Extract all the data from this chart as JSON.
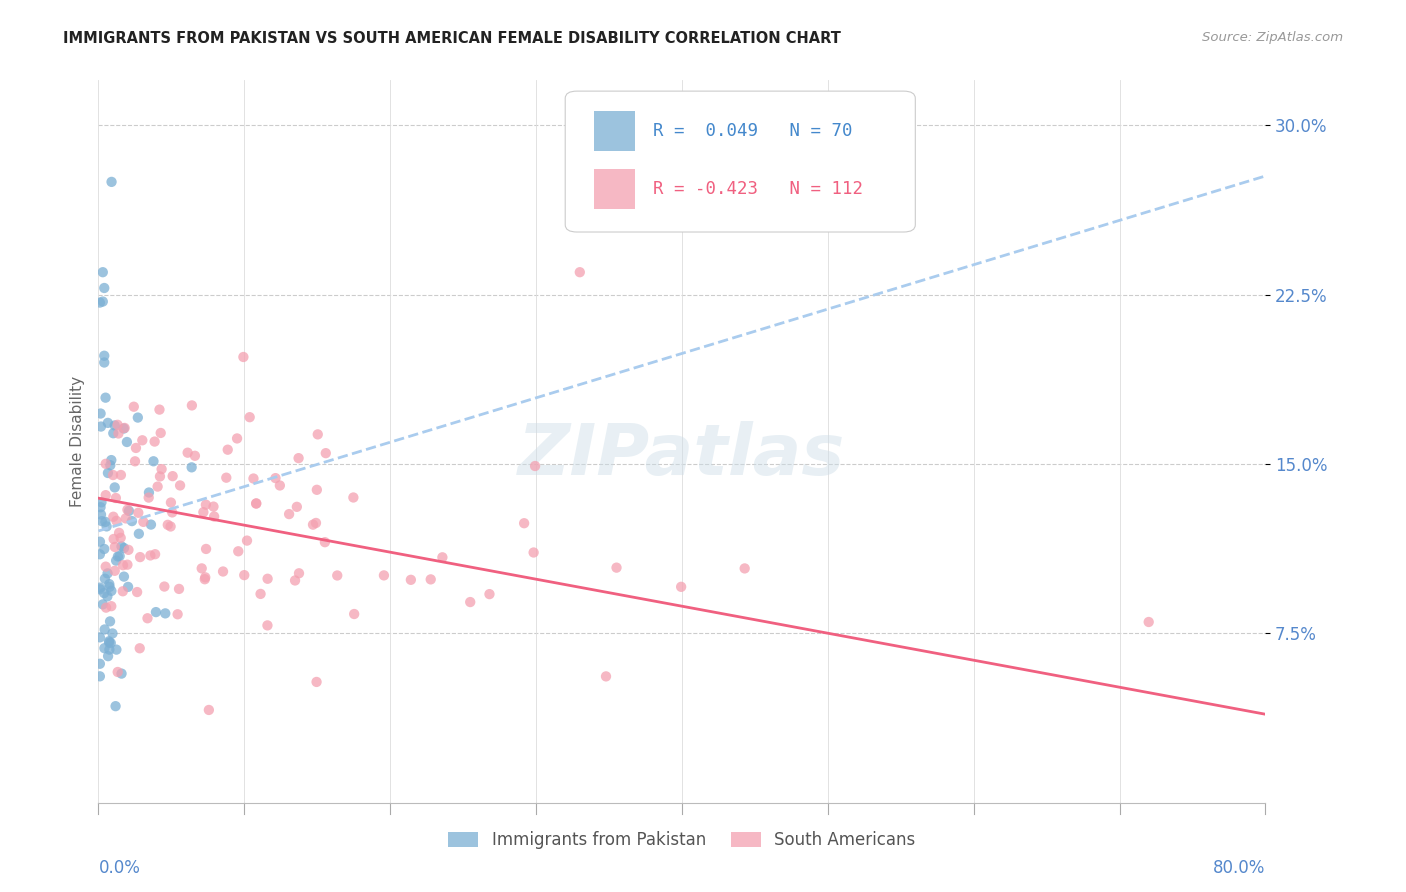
{
  "title": "IMMIGRANTS FROM PAKISTAN VS SOUTH AMERICAN FEMALE DISABILITY CORRELATION CHART",
  "source": "Source: ZipAtlas.com",
  "ylabel": "Female Disability",
  "xmin": 0.0,
  "xmax": 0.8,
  "ymin": 0.0,
  "ymax": 0.32,
  "r_pakistan": 0.049,
  "n_pakistan": 70,
  "r_south_american": -0.423,
  "n_south_american": 112,
  "color_pakistan": "#7BAFD4",
  "color_south_american": "#F4A0B0",
  "trendline_pakistan_color": "#AACCEE",
  "trendline_south_american_color": "#F06080",
  "ytick_vals": [
    0.075,
    0.15,
    0.225,
    0.3
  ],
  "ytick_labels": [
    "7.5%",
    "15.0%",
    "22.5%",
    "30.0%"
  ],
  "watermark_text": "ZIPatlas",
  "seed": 12
}
